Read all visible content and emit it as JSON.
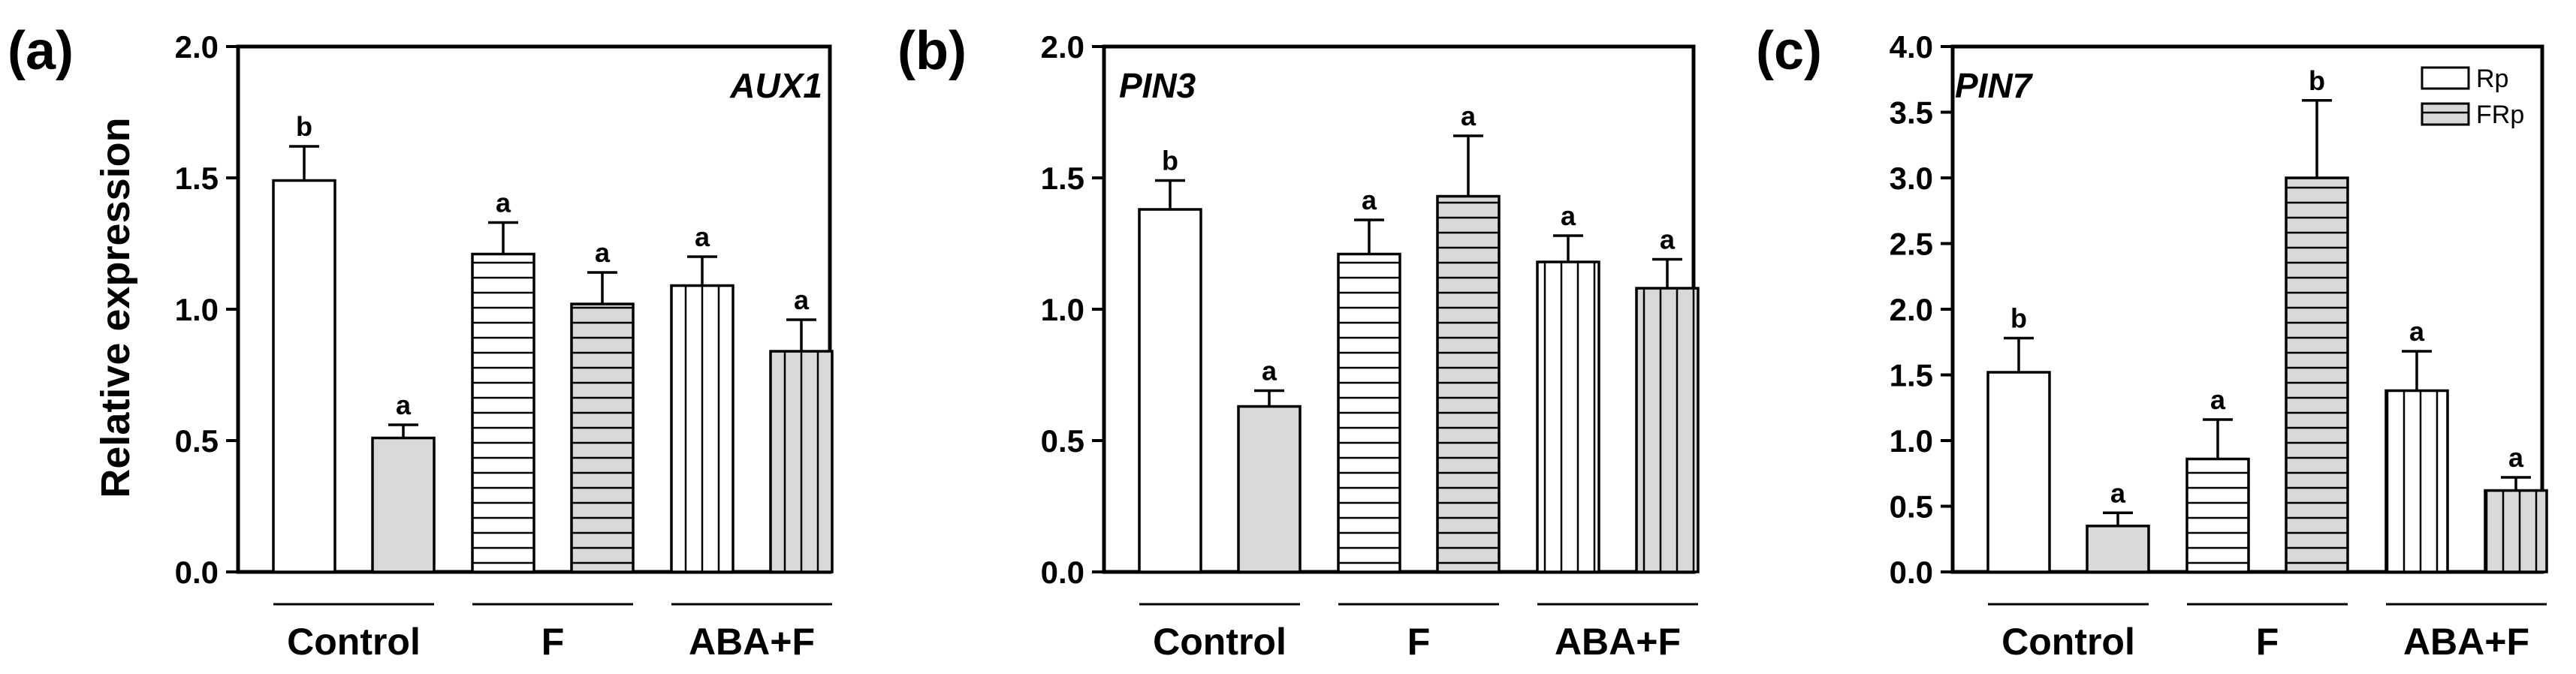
{
  "legend": [
    {
      "name": "Rp",
      "pattern": "white"
    },
    {
      "name": "FRp",
      "pattern": "gray"
    }
  ],
  "groups": [
    "Control",
    "F",
    "ABA+F"
  ],
  "colors": {
    "gray_fill": "#d9d9d9",
    "white_fill": "#ffffff",
    "line": "#000000"
  },
  "chart_data": [
    {
      "type": "bar",
      "panel_label": "(a)",
      "title": "AUX1",
      "ylabel": "Relative expression",
      "ylim": [
        0,
        2.0
      ],
      "yticks": [
        "0.0",
        "0.5",
        "1.0",
        "1.5",
        "2.0"
      ],
      "bars": [
        {
          "group": "Control",
          "sample": "Rp",
          "pattern": "white",
          "value": 1.49,
          "error": 0.13,
          "sig": "b"
        },
        {
          "group": "Control",
          "sample": "FRp",
          "pattern": "gray",
          "value": 0.51,
          "error": 0.05,
          "sig": "a"
        },
        {
          "group": "F",
          "sample": "Rp",
          "pattern": "hstripe-white",
          "value": 1.21,
          "error": 0.12,
          "sig": "a"
        },
        {
          "group": "F",
          "sample": "FRp",
          "pattern": "hstripe-gray",
          "value": 1.02,
          "error": 0.12,
          "sig": "a"
        },
        {
          "group": "ABA+F",
          "sample": "Rp",
          "pattern": "vstripe-white",
          "value": 1.09,
          "error": 0.11,
          "sig": "a"
        },
        {
          "group": "ABA+F",
          "sample": "FRp",
          "pattern": "vstripe-gray",
          "value": 0.84,
          "error": 0.12,
          "sig": "a"
        }
      ]
    },
    {
      "type": "bar",
      "panel_label": "(b)",
      "title": "PIN3",
      "ylabel": "",
      "ylim": [
        0,
        2.0
      ],
      "yticks": [
        "0.0",
        "0.5",
        "1.0",
        "1.5",
        "2.0"
      ],
      "bars": [
        {
          "group": "Control",
          "sample": "Rp",
          "pattern": "white",
          "value": 1.38,
          "error": 0.11,
          "sig": "b"
        },
        {
          "group": "Control",
          "sample": "FRp",
          "pattern": "gray",
          "value": 0.63,
          "error": 0.06,
          "sig": "a"
        },
        {
          "group": "F",
          "sample": "Rp",
          "pattern": "hstripe-white",
          "value": 1.21,
          "error": 0.13,
          "sig": "a"
        },
        {
          "group": "F",
          "sample": "FRp",
          "pattern": "hstripe-gray",
          "value": 1.43,
          "error": 0.23,
          "sig": "a"
        },
        {
          "group": "ABA+F",
          "sample": "Rp",
          "pattern": "vstripe-white",
          "value": 1.18,
          "error": 0.1,
          "sig": "a"
        },
        {
          "group": "ABA+F",
          "sample": "FRp",
          "pattern": "vstripe-gray",
          "value": 1.08,
          "error": 0.11,
          "sig": "a"
        }
      ]
    },
    {
      "type": "bar",
      "panel_label": "(c)",
      "title": "PIN7",
      "ylabel": "",
      "ylim": [
        0,
        4.0
      ],
      "yticks": [
        "0.0",
        "0.5",
        "1.0",
        "1.5",
        "2.0",
        "2.5",
        "3.0",
        "3.5",
        "4.0"
      ],
      "bars": [
        {
          "group": "Control",
          "sample": "Rp",
          "pattern": "white",
          "value": 1.52,
          "error": 0.26,
          "sig": "b"
        },
        {
          "group": "Control",
          "sample": "FRp",
          "pattern": "gray",
          "value": 0.35,
          "error": 0.1,
          "sig": "a"
        },
        {
          "group": "F",
          "sample": "Rp",
          "pattern": "hstripe-white",
          "value": 0.86,
          "error": 0.3,
          "sig": "a"
        },
        {
          "group": "F",
          "sample": "FRp",
          "pattern": "hstripe-gray",
          "value": 3.0,
          "error": 0.59,
          "sig": "b"
        },
        {
          "group": "ABA+F",
          "sample": "Rp",
          "pattern": "vstripe-white",
          "value": 1.38,
          "error": 0.3,
          "sig": "a"
        },
        {
          "group": "ABA+F",
          "sample": "FRp",
          "pattern": "vstripe-gray",
          "value": 0.62,
          "error": 0.1,
          "sig": "a"
        }
      ]
    }
  ]
}
